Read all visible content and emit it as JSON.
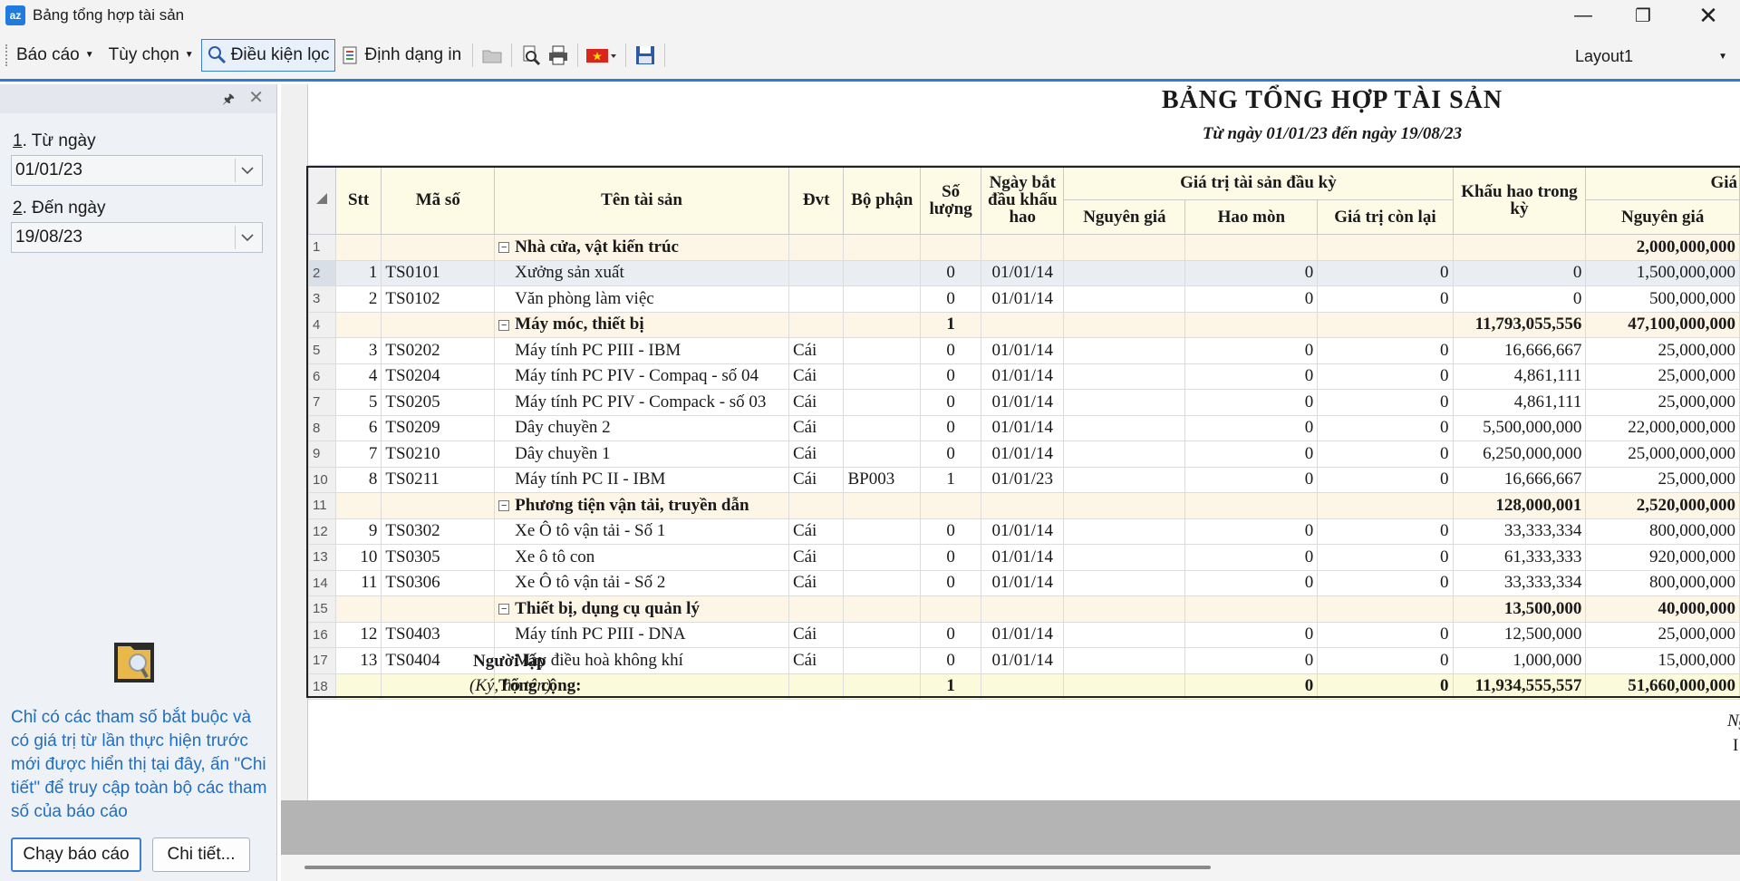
{
  "window": {
    "title": "Bảng tổng hợp tài sản",
    "app_icon": "az"
  },
  "toolbar": {
    "menu_report": "Báo cáo",
    "menu_options": "Tùy chọn",
    "filter_button": "Điều kiện lọc",
    "print_format_button": "Định dạng in",
    "layout_value": "Layout1"
  },
  "params": {
    "from_label_num": "1",
    "from_label": ". Từ ngày",
    "from_value": "01/01/23",
    "to_label_num": "2",
    "to_label": ". Đến ngày",
    "to_value": "19/08/23",
    "hint": "Chỉ có các tham số bắt buộc và có giá trị từ lần thực hiện trước mới được hiển thị tại đây, ấn \"Chi tiết\" để truy cập toàn bộ các tham số của báo cáo",
    "run_button": "Chạy báo cáo",
    "detail_button": "Chi tiết..."
  },
  "report": {
    "title": "BẢNG TỔNG HỢP TÀI SẢN",
    "subtitle": "Từ ngày 01/01/23 đến ngày 19/08/23",
    "headers": {
      "stt": "Stt",
      "code": "Mã số",
      "name": "Tên tài sản",
      "unit": "Đvt",
      "dept": "Bộ phận",
      "qty": "Số lượng",
      "start": "Ngày bắt đầu khấu hao",
      "opening_group": "Giá trị tài sản đầu kỳ",
      "orig": "Nguyên giá",
      "wear": "Hao mòn",
      "remain": "Giá trị còn lại",
      "depr": "Khấu hao trong kỳ",
      "next_group": "Giá",
      "next_orig": "Nguyên giá"
    },
    "rows": [
      {
        "rn": "1",
        "type": "group",
        "name": "Nhà cửa, vật kiến trúc",
        "stt": "",
        "code": "",
        "unit": "",
        "dept": "",
        "qty": "",
        "start": "",
        "orig": "",
        "wear": "",
        "remain": "",
        "depr": "",
        "next": "2,000,000,000"
      },
      {
        "rn": "2",
        "type": "sel",
        "stt": "1",
        "code": "TS0101",
        "name": "Xưởng sản xuất",
        "unit": "",
        "dept": "",
        "qty": "0",
        "start": "01/01/14",
        "orig": "",
        "wear": "0",
        "remain": "0",
        "depr": "0",
        "next": "1,500,000,000"
      },
      {
        "rn": "3",
        "type": "item",
        "stt": "2",
        "code": "TS0102",
        "name": "Văn phòng làm việc",
        "unit": "",
        "dept": "",
        "qty": "0",
        "start": "01/01/14",
        "orig": "",
        "wear": "0",
        "remain": "0",
        "depr": "0",
        "next": "500,000,000"
      },
      {
        "rn": "4",
        "type": "group",
        "name": "Máy móc, thiết bị",
        "stt": "",
        "code": "",
        "unit": "",
        "dept": "",
        "qty": "1",
        "start": "",
        "orig": "",
        "wear": "",
        "remain": "",
        "depr": "11,793,055,556",
        "next": "47,100,000,000"
      },
      {
        "rn": "5",
        "type": "item",
        "stt": "3",
        "code": "TS0202",
        "name": "Máy tính PC PIII - IBM",
        "unit": "Cái",
        "dept": "",
        "qty": "0",
        "start": "01/01/14",
        "orig": "",
        "wear": "0",
        "remain": "0",
        "depr": "16,666,667",
        "next": "25,000,000"
      },
      {
        "rn": "6",
        "type": "item",
        "stt": "4",
        "code": "TS0204",
        "name": "Máy tính PC PIV - Compaq - số 04",
        "unit": "Cái",
        "dept": "",
        "qty": "0",
        "start": "01/01/14",
        "orig": "",
        "wear": "0",
        "remain": "0",
        "depr": "4,861,111",
        "next": "25,000,000"
      },
      {
        "rn": "7",
        "type": "item",
        "stt": "5",
        "code": "TS0205",
        "name": "Máy tính PC PIV - Compack - số 03",
        "unit": "Cái",
        "dept": "",
        "qty": "0",
        "start": "01/01/14",
        "orig": "",
        "wear": "0",
        "remain": "0",
        "depr": "4,861,111",
        "next": "25,000,000"
      },
      {
        "rn": "8",
        "type": "item",
        "stt": "6",
        "code": "TS0209",
        "name": "Dây chuyền 2",
        "unit": "Cái",
        "dept": "",
        "qty": "0",
        "start": "01/01/14",
        "orig": "",
        "wear": "0",
        "remain": "0",
        "depr": "5,500,000,000",
        "next": "22,000,000,000"
      },
      {
        "rn": "9",
        "type": "item",
        "stt": "7",
        "code": "TS0210",
        "name": "Dây chuyền 1",
        "unit": "Cái",
        "dept": "",
        "qty": "0",
        "start": "01/01/14",
        "orig": "",
        "wear": "0",
        "remain": "0",
        "depr": "6,250,000,000",
        "next": "25,000,000,000"
      },
      {
        "rn": "10",
        "type": "item",
        "stt": "8",
        "code": "TS0211",
        "name": "Máy tính PC II - IBM",
        "unit": "Cái",
        "dept": "BP003",
        "qty": "1",
        "start": "01/01/23",
        "orig": "",
        "wear": "0",
        "remain": "0",
        "depr": "16,666,667",
        "next": "25,000,000"
      },
      {
        "rn": "11",
        "type": "group",
        "name": "Phương tiện vận tải, truyền dẫn",
        "stt": "",
        "code": "",
        "unit": "",
        "dept": "",
        "qty": "",
        "start": "",
        "orig": "",
        "wear": "",
        "remain": "",
        "depr": "128,000,001",
        "next": "2,520,000,000"
      },
      {
        "rn": "12",
        "type": "item",
        "stt": "9",
        "code": "TS0302",
        "name": "Xe Ô tô vận tải - Số 1",
        "unit": "Cái",
        "dept": "",
        "qty": "0",
        "start": "01/01/14",
        "orig": "",
        "wear": "0",
        "remain": "0",
        "depr": "33,333,334",
        "next": "800,000,000"
      },
      {
        "rn": "13",
        "type": "item",
        "stt": "10",
        "code": "TS0305",
        "name": "Xe ô tô con",
        "unit": "Cái",
        "dept": "",
        "qty": "0",
        "start": "01/01/14",
        "orig": "",
        "wear": "0",
        "remain": "0",
        "depr": "61,333,333",
        "next": "920,000,000"
      },
      {
        "rn": "14",
        "type": "item",
        "stt": "11",
        "code": "TS0306",
        "name": "Xe Ô tô vận tải - Số 2",
        "unit": "Cái",
        "dept": "",
        "qty": "0",
        "start": "01/01/14",
        "orig": "",
        "wear": "0",
        "remain": "0",
        "depr": "33,333,334",
        "next": "800,000,000"
      },
      {
        "rn": "15",
        "type": "group",
        "name": "Thiết bị, dụng cụ quản lý",
        "stt": "",
        "code": "",
        "unit": "",
        "dept": "",
        "qty": "",
        "start": "",
        "orig": "",
        "wear": "",
        "remain": "",
        "depr": "13,500,000",
        "next": "40,000,000"
      },
      {
        "rn": "16",
        "type": "item",
        "stt": "12",
        "code": "TS0403",
        "name": "Máy tính PC PIII - DNA",
        "unit": "Cái",
        "dept": "",
        "qty": "0",
        "start": "01/01/14",
        "orig": "",
        "wear": "0",
        "remain": "0",
        "depr": "12,500,000",
        "next": "25,000,000"
      },
      {
        "rn": "17",
        "type": "item",
        "stt": "13",
        "code": "TS0404",
        "name": "Máy điều hoà không khí",
        "unit": "Cái",
        "dept": "",
        "qty": "0",
        "start": "01/01/14",
        "orig": "",
        "wear": "0",
        "remain": "0",
        "depr": "1,000,000",
        "next": "15,000,000"
      },
      {
        "rn": "18",
        "type": "total",
        "name": "Tổng cộng:",
        "stt": "",
        "code": "",
        "unit": "",
        "dept": "",
        "qty": "1",
        "start": "",
        "orig": "",
        "wear": "0",
        "remain": "0",
        "depr": "11,934,555,557",
        "next": "51,660,000,000"
      }
    ],
    "signature": {
      "date_partial": "Ngày",
      "date_partial2": "I",
      "title": "Người lập",
      "note": "(Ký, họ tên)"
    }
  }
}
